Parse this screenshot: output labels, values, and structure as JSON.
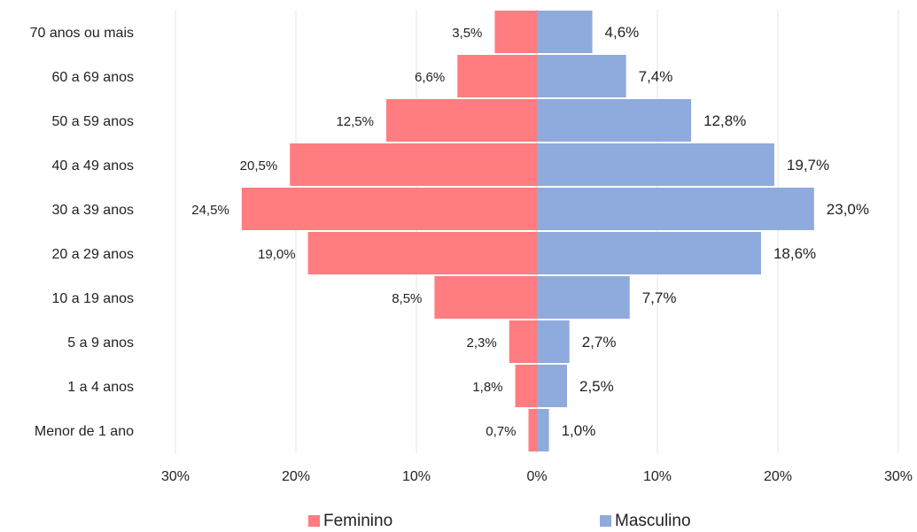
{
  "chart_data": {
    "type": "bar",
    "orientation": "horizontal-population-pyramid",
    "categories": [
      "70 anos ou mais",
      "60 a 69 anos",
      "50 a 59 anos",
      "40 a 49 anos",
      "30 a 39 anos",
      "20 a 29 anos",
      "10 a 19 anos",
      "5 a 9 anos",
      "1 a 4 anos",
      "Menor de 1 ano"
    ],
    "series": [
      {
        "name": "Feminino",
        "color": "#ff7c80",
        "values": [
          3.5,
          6.6,
          12.5,
          20.5,
          24.5,
          19.0,
          8.5,
          2.3,
          1.8,
          0.7
        ],
        "labels": [
          "3,5%",
          "6,6%",
          "12,5%",
          "20,5%",
          "24,5%",
          "19,0%",
          "8,5%",
          "2,3%",
          "1,8%",
          "0,7%"
        ]
      },
      {
        "name": "Masculino",
        "color": "#8faadc",
        "values": [
          4.6,
          7.4,
          12.8,
          19.7,
          23.0,
          18.6,
          7.7,
          2.7,
          2.5,
          1.0
        ],
        "labels": [
          "4,6%",
          "7,4%",
          "12,8%",
          "19,7%",
          "23,0%",
          "18,6%",
          "7,7%",
          "2,7%",
          "2,5%",
          "1,0%"
        ]
      }
    ],
    "x_ticks": [
      "30%",
      "20%",
      "10%",
      "0%",
      "10%",
      "20%",
      "30%"
    ],
    "xlim": [
      -30,
      30
    ],
    "grid": true,
    "legend_position": "bottom"
  }
}
